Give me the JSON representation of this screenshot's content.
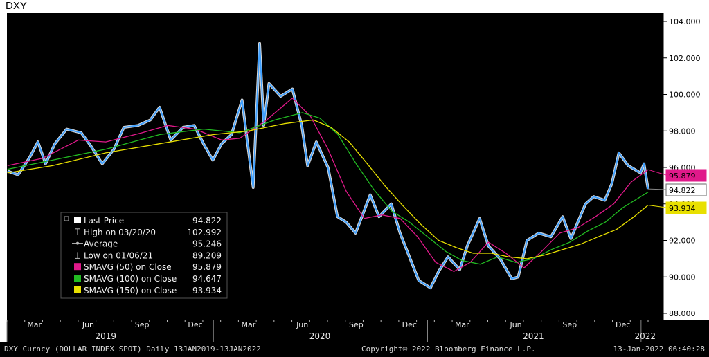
{
  "title": "DXY",
  "footer": {
    "left": "DXY Curncy (DOLLAR INDEX SPOT)  Daily 13JAN2019-13JAN2022",
    "center": "Copyright© 2022 Bloomberg Finance L.P.",
    "right": "13-Jan-2022 06:40:28"
  },
  "chart_data": {
    "type": "line",
    "title": "DXY",
    "ylim": [
      88.0,
      104.0
    ],
    "y_ticks": [
      "104.000",
      "102.000",
      "100.000",
      "98.000",
      "96.000",
      "94.000",
      "92.000",
      "90.000",
      "88.000"
    ],
    "x_tick_labels": [
      "Mar",
      "Jun",
      "Sep",
      "Dec",
      "Mar",
      "Jun",
      "Sep",
      "Dec",
      "Mar",
      "Jun",
      "Sep",
      "Dec"
    ],
    "year_labels": [
      "2019",
      "2020",
      "2021",
      "2022"
    ],
    "grid": false,
    "legend_position": "bottom-left",
    "price_labels": [
      {
        "text": "95.879",
        "color": "#e0198a"
      },
      {
        "text": "94.822",
        "color": "#ffffff"
      },
      {
        "text": "93.934",
        "color": "#e8e000"
      }
    ],
    "legend": [
      {
        "label": "Last Price",
        "value": "94.822",
        "color": "#ffffff",
        "marker": "square"
      },
      {
        "label": "High on 03/20/20",
        "value": "102.992",
        "color": "#bbbbbb",
        "marker": "high"
      },
      {
        "label": "Average",
        "value": "95.246",
        "color": "#bbbbbb",
        "marker": "avg"
      },
      {
        "label": "Low on 01/06/21",
        "value": "89.209",
        "color": "#bbbbbb",
        "marker": "low"
      },
      {
        "label": "SMAVG (50)  on Close",
        "value": "95.879",
        "color": "#e0198a",
        "marker": "square"
      },
      {
        "label": "SMAVG (100)  on Close",
        "value": "94.647",
        "color": "#22bb22",
        "marker": "square"
      },
      {
        "label": "SMAVG (150)  on Close",
        "value": "93.934",
        "color": "#e8e000",
        "marker": "square"
      }
    ],
    "x_range": [
      "2019-01-13",
      "2022-01-13"
    ],
    "series": [
      {
        "name": "Last Price",
        "color": "#3fa0ff",
        "points": [
          [
            "2019-01-14",
            95.8
          ],
          [
            "2019-02-01",
            95.6
          ],
          [
            "2019-02-20",
            96.5
          ],
          [
            "2019-03-07",
            97.4
          ],
          [
            "2019-03-20",
            96.2
          ],
          [
            "2019-04-05",
            97.3
          ],
          [
            "2019-04-25",
            98.1
          ],
          [
            "2019-05-20",
            97.9
          ],
          [
            "2019-06-05",
            97.2
          ],
          [
            "2019-06-25",
            96.2
          ],
          [
            "2019-07-15",
            97.0
          ],
          [
            "2019-08-01",
            98.2
          ],
          [
            "2019-08-25",
            98.3
          ],
          [
            "2019-09-15",
            98.6
          ],
          [
            "2019-10-01",
            99.3
          ],
          [
            "2019-10-20",
            97.5
          ],
          [
            "2019-11-10",
            98.2
          ],
          [
            "2019-11-29",
            98.3
          ],
          [
            "2019-12-15",
            97.3
          ],
          [
            "2019-12-31",
            96.4
          ],
          [
            "2020-01-15",
            97.3
          ],
          [
            "2020-02-01",
            97.8
          ],
          [
            "2020-02-19",
            99.7
          ],
          [
            "2020-03-09",
            94.9
          ],
          [
            "2020-03-20",
            102.8
          ],
          [
            "2020-03-27",
            98.3
          ],
          [
            "2020-04-05",
            100.6
          ],
          [
            "2020-04-25",
            99.9
          ],
          [
            "2020-05-15",
            100.3
          ],
          [
            "2020-05-31",
            98.3
          ],
          [
            "2020-06-10",
            96.1
          ],
          [
            "2020-06-25",
            97.4
          ],
          [
            "2020-07-15",
            96.0
          ],
          [
            "2020-07-31",
            93.3
          ],
          [
            "2020-08-15",
            93.0
          ],
          [
            "2020-08-31",
            92.4
          ],
          [
            "2020-09-25",
            94.5
          ],
          [
            "2020-10-10",
            93.3
          ],
          [
            "2020-10-31",
            94.0
          ],
          [
            "2020-11-15",
            92.4
          ],
          [
            "2020-12-01",
            91.1
          ],
          [
            "2020-12-17",
            89.8
          ],
          [
            "2021-01-06",
            89.4
          ],
          [
            "2021-01-20",
            90.3
          ],
          [
            "2021-02-05",
            91.1
          ],
          [
            "2021-02-25",
            90.4
          ],
          [
            "2021-03-10",
            91.7
          ],
          [
            "2021-03-31",
            93.2
          ],
          [
            "2021-04-15",
            91.7
          ],
          [
            "2021-05-05",
            91.0
          ],
          [
            "2021-05-25",
            89.9
          ],
          [
            "2021-06-05",
            90.0
          ],
          [
            "2021-06-20",
            92.0
          ],
          [
            "2021-07-10",
            92.4
          ],
          [
            "2021-07-31",
            92.2
          ],
          [
            "2021-08-20",
            93.3
          ],
          [
            "2021-09-03",
            92.1
          ],
          [
            "2021-09-28",
            94.0
          ],
          [
            "2021-10-12",
            94.4
          ],
          [
            "2021-10-31",
            94.2
          ],
          [
            "2021-11-12",
            95.1
          ],
          [
            "2021-11-24",
            96.8
          ],
          [
            "2021-12-10",
            96.1
          ],
          [
            "2021-12-31",
            95.7
          ],
          [
            "2022-01-06",
            96.2
          ],
          [
            "2022-01-12",
            95.0
          ],
          [
            "2022-01-13",
            94.822
          ]
        ]
      },
      {
        "name": "SMAVG (50)  on Close",
        "color": "#e0198a",
        "points": [
          [
            "2019-01-14",
            96.1
          ],
          [
            "2019-03-15",
            96.5
          ],
          [
            "2019-05-15",
            97.5
          ],
          [
            "2019-07-01",
            97.4
          ],
          [
            "2019-09-01",
            97.9
          ],
          [
            "2019-10-15",
            98.3
          ],
          [
            "2019-12-01",
            98.1
          ],
          [
            "2020-01-15",
            97.5
          ],
          [
            "2020-02-15",
            97.6
          ],
          [
            "2020-04-01",
            98.6
          ],
          [
            "2020-05-15",
            99.8
          ],
          [
            "2020-06-15",
            98.8
          ],
          [
            "2020-07-15",
            97.0
          ],
          [
            "2020-08-15",
            94.7
          ],
          [
            "2020-09-15",
            93.2
          ],
          [
            "2020-10-15",
            93.4
          ],
          [
            "2020-11-15",
            93.2
          ],
          [
            "2020-12-15",
            92.2
          ],
          [
            "2021-01-15",
            90.8
          ],
          [
            "2021-02-15",
            90.3
          ],
          [
            "2021-03-15",
            90.8
          ],
          [
            "2021-04-15",
            91.9
          ],
          [
            "2021-05-15",
            91.3
          ],
          [
            "2021-06-15",
            90.5
          ],
          [
            "2021-07-15",
            91.4
          ],
          [
            "2021-08-15",
            92.4
          ],
          [
            "2021-09-15",
            92.7
          ],
          [
            "2021-10-15",
            93.3
          ],
          [
            "2021-11-15",
            94.0
          ],
          [
            "2021-12-15",
            95.2
          ],
          [
            "2022-01-13",
            95.879
          ]
        ]
      },
      {
        "name": "SMAVG (100)  on Close",
        "color": "#22bb22",
        "points": [
          [
            "2019-01-14",
            95.9
          ],
          [
            "2019-04-01",
            96.4
          ],
          [
            "2019-07-01",
            97.0
          ],
          [
            "2019-10-01",
            97.8
          ],
          [
            "2019-12-15",
            98.1
          ],
          [
            "2020-02-15",
            97.9
          ],
          [
            "2020-04-15",
            98.6
          ],
          [
            "2020-06-01",
            99.0
          ],
          [
            "2020-07-01",
            98.7
          ],
          [
            "2020-08-01",
            97.8
          ],
          [
            "2020-09-01",
            96.2
          ],
          [
            "2020-10-01",
            94.8
          ],
          [
            "2020-11-01",
            93.6
          ],
          [
            "2020-12-01",
            93.0
          ],
          [
            "2021-01-01",
            92.2
          ],
          [
            "2021-02-01",
            91.4
          ],
          [
            "2021-03-01",
            90.9
          ],
          [
            "2021-04-01",
            90.7
          ],
          [
            "2021-05-01",
            91.1
          ],
          [
            "2021-06-01",
            90.8
          ],
          [
            "2021-07-01",
            91.0
          ],
          [
            "2021-08-01",
            91.5
          ],
          [
            "2021-09-01",
            91.9
          ],
          [
            "2021-10-01",
            92.5
          ],
          [
            "2021-11-01",
            93.0
          ],
          [
            "2021-12-01",
            93.8
          ],
          [
            "2022-01-13",
            94.647
          ]
        ]
      },
      {
        "name": "SMAVG (150)  on Close",
        "color": "#e8e000",
        "points": [
          [
            "2019-01-14",
            95.7
          ],
          [
            "2019-04-01",
            96.1
          ],
          [
            "2019-07-01",
            96.8
          ],
          [
            "2019-10-01",
            97.3
          ],
          [
            "2020-01-01",
            97.8
          ],
          [
            "2020-03-01",
            98.0
          ],
          [
            "2020-05-01",
            98.4
          ],
          [
            "2020-06-20",
            98.6
          ],
          [
            "2020-07-20",
            98.2
          ],
          [
            "2020-08-20",
            97.4
          ],
          [
            "2020-09-20",
            96.2
          ],
          [
            "2020-10-20",
            95.0
          ],
          [
            "2020-11-20",
            93.9
          ],
          [
            "2020-12-20",
            92.9
          ],
          [
            "2021-01-20",
            92.0
          ],
          [
            "2021-02-20",
            91.6
          ],
          [
            "2021-03-20",
            91.3
          ],
          [
            "2021-04-20",
            91.3
          ],
          [
            "2021-05-20",
            91.1
          ],
          [
            "2021-06-20",
            91.0
          ],
          [
            "2021-07-20",
            91.2
          ],
          [
            "2021-08-20",
            91.5
          ],
          [
            "2021-09-20",
            91.8
          ],
          [
            "2021-10-20",
            92.2
          ],
          [
            "2021-11-20",
            92.6
          ],
          [
            "2021-12-20",
            93.3
          ],
          [
            "2022-01-13",
            93.934
          ]
        ]
      }
    ]
  }
}
